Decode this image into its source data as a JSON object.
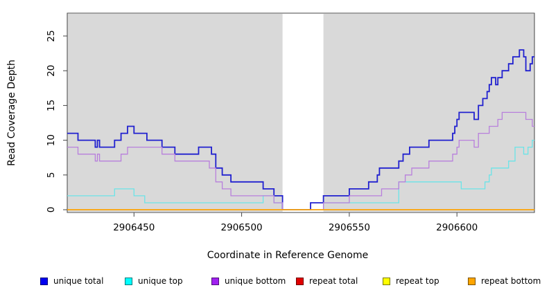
{
  "chart_data": {
    "type": "line",
    "step": true,
    "title": "",
    "xlabel": "Coordinate in Reference Genome",
    "ylabel": "Read Coverage Depth",
    "x_ticks": [
      2906450,
      2906500,
      2906550,
      2906600
    ],
    "y_ticks": [
      0,
      5,
      10,
      15,
      20,
      25
    ],
    "xlim": [
      2906419,
      2906636
    ],
    "ylim": [
      0,
      28
    ],
    "grid": false,
    "legend_position": "bottom",
    "plot_bg": "#d9d9d9",
    "unique_regions": [
      [
        2906419,
        2906519
      ],
      [
        2906538,
        2906636
      ]
    ],
    "repeat_region": [
      2906519,
      2906538
    ],
    "series": [
      {
        "name": "unique total",
        "color": "#2020cf",
        "width": 1.8,
        "points": [
          [
            2906419,
            11
          ],
          [
            2906424,
            10
          ],
          [
            2906432,
            9
          ],
          [
            2906433,
            10
          ],
          [
            2906434,
            9
          ],
          [
            2906441,
            10
          ],
          [
            2906444,
            11
          ],
          [
            2906447,
            12
          ],
          [
            2906450,
            11
          ],
          [
            2906456,
            10
          ],
          [
            2906463,
            9
          ],
          [
            2906469,
            8
          ],
          [
            2906480,
            9
          ],
          [
            2906486,
            8
          ],
          [
            2906488,
            6
          ],
          [
            2906491,
            5
          ],
          [
            2906495,
            4
          ],
          [
            2906510,
            3
          ],
          [
            2906515,
            2
          ],
          [
            2906519,
            0
          ],
          [
            2906532,
            1
          ],
          [
            2906538,
            2
          ],
          [
            2906550,
            3
          ],
          [
            2906559,
            4
          ],
          [
            2906563,
            5
          ],
          [
            2906564,
            6
          ],
          [
            2906573,
            7
          ],
          [
            2906575,
            8
          ],
          [
            2906578,
            9
          ],
          [
            2906587,
            10
          ],
          [
            2906598,
            11
          ],
          [
            2906599,
            12
          ],
          [
            2906600,
            13
          ],
          [
            2906601,
            14
          ],
          [
            2906608,
            13
          ],
          [
            2906610,
            15
          ],
          [
            2906612,
            16
          ],
          [
            2906614,
            17
          ],
          [
            2906615,
            18
          ],
          [
            2906616,
            19
          ],
          [
            2906618,
            18
          ],
          [
            2906619,
            19
          ],
          [
            2906621,
            20
          ],
          [
            2906624,
            21
          ],
          [
            2906626,
            22
          ],
          [
            2906629,
            23
          ],
          [
            2906631,
            22
          ],
          [
            2906632,
            20
          ],
          [
            2906634,
            21
          ],
          [
            2906635,
            22
          ]
        ]
      },
      {
        "name": "unique top",
        "color": "#6ae4e8",
        "width": 1.3,
        "points": [
          [
            2906419,
            2
          ],
          [
            2906441,
            3
          ],
          [
            2906450,
            2
          ],
          [
            2906455,
            1
          ],
          [
            2906510,
            2
          ],
          [
            2906515,
            1
          ],
          [
            2906519,
            0
          ],
          [
            2906538,
            1
          ],
          [
            2906573,
            4
          ],
          [
            2906602,
            3
          ],
          [
            2906613,
            4
          ],
          [
            2906615,
            5
          ],
          [
            2906616,
            6
          ],
          [
            2906624,
            7
          ],
          [
            2906627,
            9
          ],
          [
            2906631,
            8
          ],
          [
            2906633,
            9
          ],
          [
            2906635,
            10
          ]
        ]
      },
      {
        "name": "unique bottom",
        "color": "#b87fdc",
        "width": 1.3,
        "points": [
          [
            2906419,
            9
          ],
          [
            2906424,
            8
          ],
          [
            2906432,
            7
          ],
          [
            2906433,
            8
          ],
          [
            2906434,
            7
          ],
          [
            2906444,
            8
          ],
          [
            2906447,
            9
          ],
          [
            2906463,
            8
          ],
          [
            2906469,
            7
          ],
          [
            2906485,
            6
          ],
          [
            2906488,
            4
          ],
          [
            2906491,
            3
          ],
          [
            2906495,
            2
          ],
          [
            2906515,
            1
          ],
          [
            2906519,
            0
          ],
          [
            2906538,
            1
          ],
          [
            2906550,
            2
          ],
          [
            2906565,
            3
          ],
          [
            2906573,
            4
          ],
          [
            2906576,
            5
          ],
          [
            2906579,
            6
          ],
          [
            2906587,
            7
          ],
          [
            2906598,
            8
          ],
          [
            2906600,
            9
          ],
          [
            2906601,
            10
          ],
          [
            2906608,
            9
          ],
          [
            2906610,
            11
          ],
          [
            2906615,
            12
          ],
          [
            2906619,
            13
          ],
          [
            2906621,
            14
          ],
          [
            2906632,
            13
          ],
          [
            2906635,
            12
          ]
        ]
      },
      {
        "name": "repeat total",
        "color": "#dd0000",
        "width": 1.3,
        "points": [
          [
            2906419,
            0
          ]
        ]
      },
      {
        "name": "repeat top",
        "color": "#ffee00",
        "width": 1.3,
        "points": [
          [
            2906419,
            0
          ]
        ]
      },
      {
        "name": "repeat bottom",
        "color": "#ffa500",
        "width": 1.6,
        "points": [
          [
            2906419,
            0
          ]
        ]
      }
    ]
  },
  "legend": {
    "items": [
      {
        "label": "unique total",
        "fill": "#0000f0",
        "border": "#00007a"
      },
      {
        "label": "unique top",
        "fill": "#00ffff",
        "border": "#007a7a"
      },
      {
        "label": "unique bottom",
        "fill": "#a020f0",
        "border": "#50107a"
      },
      {
        "label": "repeat total",
        "fill": "#e00000",
        "border": "#700000"
      },
      {
        "label": "repeat top",
        "fill": "#ffff00",
        "border": "#7a7a00"
      },
      {
        "label": "repeat bottom",
        "fill": "#ffa500",
        "border": "#7a5200"
      }
    ]
  }
}
